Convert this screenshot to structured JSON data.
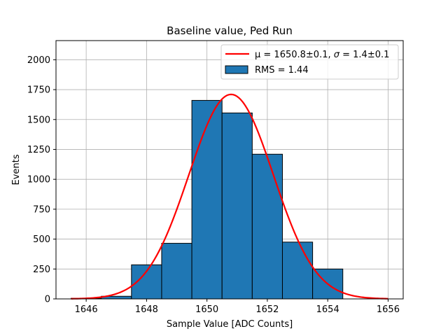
{
  "chart_data": {
    "type": "bar",
    "title": "Baseline value, Ped Run",
    "xlabel": "Sample Value [ADC Counts]",
    "ylabel": "Events",
    "xlim": [
      1645,
      1656.5
    ],
    "ylim": [
      0,
      2160
    ],
    "grid": true,
    "xticks": [
      1646,
      1648,
      1650,
      1652,
      1654,
      1656
    ],
    "xtick_labels": [
      "1646",
      "1648",
      "1650",
      "1652",
      "1654",
      "1656"
    ],
    "yticks": [
      0,
      250,
      500,
      750,
      1000,
      1250,
      1500,
      1750,
      2000
    ],
    "ytick_labels": [
      "0",
      "250",
      "500",
      "750",
      "1000",
      "1250",
      "1500",
      "1750",
      "2000"
    ],
    "histogram": {
      "name": "RMS = 1.44",
      "bin_edges": [
        1645.5,
        1646.5,
        1647.5,
        1648.5,
        1649.5,
        1650.5,
        1651.5,
        1652.5,
        1653.5,
        1654.5
      ],
      "counts": [
        5,
        22,
        285,
        465,
        1660,
        1555,
        1210,
        475,
        250
      ],
      "color": "#1f77b4",
      "edgecolor": "#000000"
    },
    "fit": {
      "name_prefix": "μ = 1650.8±0.1, ",
      "name_sigma": "σ",
      "name_suffix": " = 1.4±0.1",
      "mu": 1650.8,
      "sigma": 1.4,
      "amplitude": 1710,
      "x_range": [
        1645.5,
        1656
      ],
      "color": "#ff0000"
    },
    "legend": {
      "location": "upper right",
      "entries": [
        "μ = 1650.8±0.1, σ = 1.4±0.1",
        "RMS = 1.44"
      ]
    }
  }
}
